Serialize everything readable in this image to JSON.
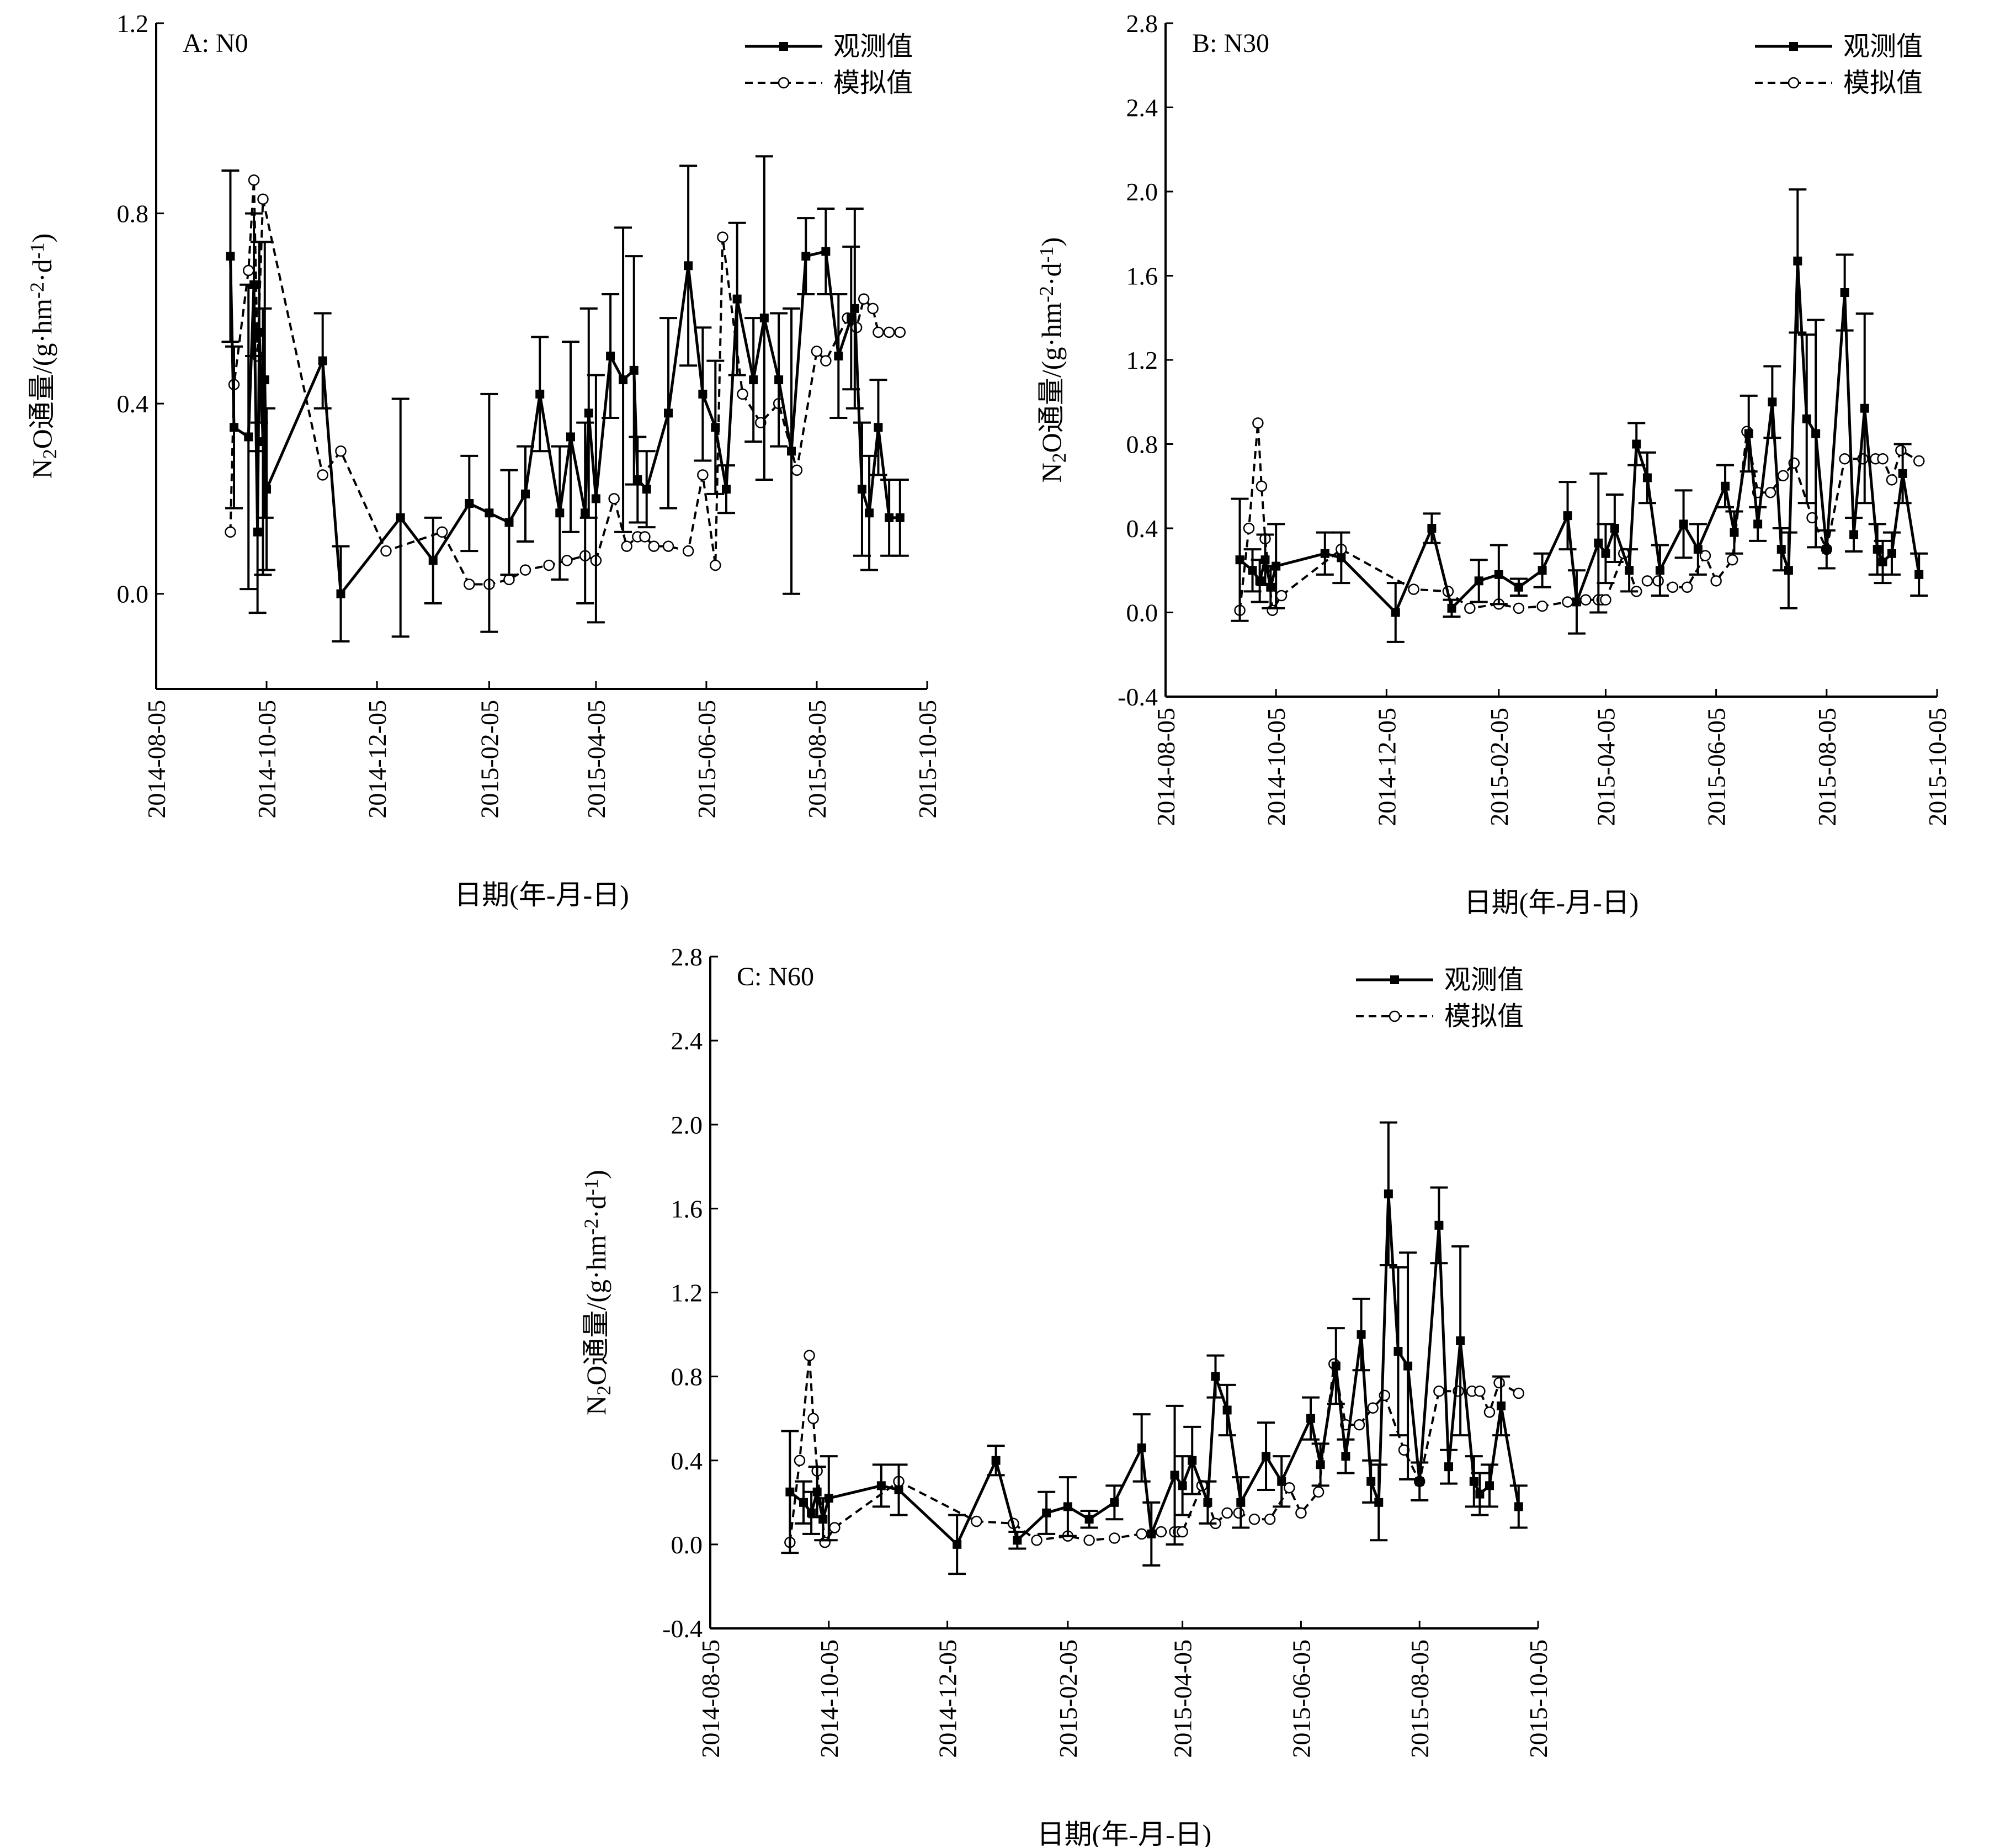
{
  "figure": {
    "y_axis_label": "N2O通量/(g·hm-2·d-1)",
    "x_axis_label": "日期(年-月-日)",
    "legend": {
      "observed": "观测值",
      "simulated": "模拟值"
    },
    "colors": {
      "axis": "#000000",
      "observed": "#000000",
      "simulated": "#000000",
      "marker_fill_simulated": "#ffffff"
    }
  },
  "chart_data": [
    {
      "type": "line",
      "panel_label": "A: N0",
      "xlabel": "日期(年-月-日)",
      "ylabel": "N2O通量/(g·hm-2·d-1)",
      "x_ticks": [
        "2014-08-05",
        "2014-10-05",
        "2014-12-05",
        "2015-02-05",
        "2015-04-05",
        "2015-06-05",
        "2015-08-05",
        "2015-10-05"
      ],
      "ylim": [
        -0.2,
        1.2
      ],
      "y_ticks": [
        0.0,
        0.4,
        0.8,
        1.2
      ],
      "legend_position": "top-right",
      "series": [
        {
          "name": "观测值",
          "style": "solid-square",
          "x": [
            "2014-09-15",
            "2014-09-17",
            "2014-09-25",
            "2014-09-28",
            "2014-09-30",
            "2014-10-01",
            "2014-10-03",
            "2014-10-04",
            "2014-10-05",
            "2014-11-05",
            "2014-11-15",
            "2014-12-18",
            "2015-01-05",
            "2015-01-25",
            "2015-02-05",
            "2015-02-16",
            "2015-02-25",
            "2015-03-05",
            "2015-03-16",
            "2015-03-22",
            "2015-03-30",
            "2015-04-01",
            "2015-04-05",
            "2015-04-13",
            "2015-04-20",
            "2015-04-26",
            "2015-04-28",
            "2015-05-03",
            "2015-05-15",
            "2015-05-26",
            "2015-06-03",
            "2015-06-10",
            "2015-06-16",
            "2015-06-22",
            "2015-07-01",
            "2015-07-07",
            "2015-07-15",
            "2015-07-22",
            "2015-07-30",
            "2015-08-10",
            "2015-08-17",
            "2015-08-24",
            "2015-08-26",
            "2015-08-30",
            "2015-09-03",
            "2015-09-08",
            "2015-09-14",
            "2015-09-20"
          ],
          "y": [
            0.71,
            0.35,
            0.33,
            0.65,
            0.13,
            0.55,
            0.32,
            0.45,
            0.22,
            0.49,
            0.0,
            0.16,
            0.07,
            0.19,
            0.17,
            0.15,
            0.21,
            0.42,
            0.17,
            0.33,
            0.17,
            0.38,
            0.2,
            0.5,
            0.45,
            0.47,
            0.24,
            0.22,
            0.38,
            0.69,
            0.42,
            0.35,
            0.22,
            0.62,
            0.45,
            0.58,
            0.45,
            0.3,
            0.71,
            0.72,
            0.5,
            0.58,
            0.6,
            0.22,
            0.17,
            0.35,
            0.16,
            0.16
          ],
          "err": [
            0.18,
            0.17,
            0.32,
            0.15,
            0.17,
            0.19,
            0.28,
            0.29,
            0.17,
            0.1,
            0.1,
            0.25,
            0.09,
            0.1,
            0.25,
            0.11,
            0.1,
            0.12,
            0.14,
            0.2,
            0.19,
            0.22,
            0.26,
            0.13,
            0.32,
            0.24,
            0.09,
            0.08,
            0.2,
            0.21,
            0.14,
            0.14,
            0.05,
            0.16,
            0.13,
            0.34,
            0.14,
            0.3,
            0.08,
            0.09,
            0.13,
            0.15,
            0.21,
            0.14,
            0.12,
            0.1,
            0.08,
            0.08
          ]
        },
        {
          "name": "模拟值",
          "style": "dashed-circle",
          "x": [
            "2014-09-15",
            "2014-09-17",
            "2014-09-25",
            "2014-09-28",
            "2014-09-30",
            "2014-10-03",
            "2014-11-05",
            "2014-11-15",
            "2014-12-10",
            "2015-01-10",
            "2015-01-25",
            "2015-02-05",
            "2015-02-16",
            "2015-02-25",
            "2015-03-10",
            "2015-03-20",
            "2015-03-30",
            "2015-04-05",
            "2015-04-15",
            "2015-04-22",
            "2015-04-28",
            "2015-05-02",
            "2015-05-07",
            "2015-05-15",
            "2015-05-26",
            "2015-06-03",
            "2015-06-10",
            "2015-06-14",
            "2015-06-25",
            "2015-07-05",
            "2015-07-15",
            "2015-07-25",
            "2015-08-05",
            "2015-08-10",
            "2015-08-22",
            "2015-08-27",
            "2015-08-31",
            "2015-09-05",
            "2015-09-08",
            "2015-09-14",
            "2015-09-20"
          ],
          "y": [
            0.13,
            0.44,
            0.68,
            0.87,
            0.5,
            0.83,
            0.25,
            0.3,
            0.09,
            0.13,
            0.02,
            0.02,
            0.03,
            0.05,
            0.06,
            0.07,
            0.08,
            0.07,
            0.2,
            0.1,
            0.12,
            0.12,
            0.1,
            0.1,
            0.09,
            0.25,
            0.06,
            0.75,
            0.42,
            0.36,
            0.4,
            0.26,
            0.51,
            0.49,
            0.58,
            0.56,
            0.62,
            0.6,
            0.55,
            0.55,
            0.55
          ]
        }
      ]
    },
    {
      "type": "line",
      "panel_label": "B: N30",
      "xlabel": "日期(年-月-日)",
      "ylabel": "N2O通量/(g·hm-2·d-1)",
      "x_ticks": [
        "2014-08-05",
        "2014-10-05",
        "2014-12-05",
        "2015-02-05",
        "2015-04-05",
        "2015-06-05",
        "2015-08-05",
        "2015-10-05"
      ],
      "ylim": [
        -0.4,
        2.8
      ],
      "y_ticks": [
        -0.4,
        0.0,
        0.4,
        0.8,
        1.2,
        1.6,
        2.0,
        2.4,
        2.8
      ],
      "legend_position": "top-right",
      "series": [
        {
          "name": "观测值",
          "style": "solid-square",
          "x": [
            "2014-09-15",
            "2014-09-22",
            "2014-09-26",
            "2014-09-29",
            "2014-10-02",
            "2014-10-05",
            "2014-11-01",
            "2014-11-10",
            "2014-12-10",
            "2014-12-30",
            "2015-01-10",
            "2015-01-25",
            "2015-02-05",
            "2015-02-16",
            "2015-03-01",
            "2015-03-15",
            "2015-03-20",
            "2015-04-01",
            "2015-04-05",
            "2015-04-10",
            "2015-04-18",
            "2015-04-22",
            "2015-04-28",
            "2015-05-05",
            "2015-05-18",
            "2015-05-26",
            "2015-06-10",
            "2015-06-15",
            "2015-06-23",
            "2015-06-28",
            "2015-07-06",
            "2015-07-11",
            "2015-07-15",
            "2015-07-20",
            "2015-07-25",
            "2015-07-30",
            "2015-08-05",
            "2015-08-15",
            "2015-08-20",
            "2015-08-26",
            "2015-09-02",
            "2015-09-05",
            "2015-09-10",
            "2015-09-16",
            "2015-09-25"
          ],
          "y": [
            0.25,
            0.2,
            0.15,
            0.25,
            0.12,
            0.22,
            0.28,
            0.26,
            0.0,
            0.4,
            0.02,
            0.15,
            0.18,
            0.12,
            0.2,
            0.46,
            0.05,
            0.33,
            0.28,
            0.4,
            0.2,
            0.8,
            0.64,
            0.2,
            0.42,
            0.3,
            0.6,
            0.38,
            0.85,
            0.42,
            1.0,
            0.3,
            0.2,
            1.67,
            0.92,
            0.85,
            0.3,
            1.52,
            0.37,
            0.97,
            0.3,
            0.24,
            0.28,
            0.66,
            0.18
          ],
          "err": [
            0.29,
            0.1,
            0.1,
            0.12,
            0.1,
            0.2,
            0.1,
            0.12,
            0.14,
            0.07,
            0.04,
            0.1,
            0.14,
            0.04,
            0.08,
            0.16,
            0.15,
            0.33,
            0.14,
            0.16,
            0.1,
            0.1,
            0.12,
            0.12,
            0.16,
            0.12,
            0.1,
            0.1,
            0.18,
            0.08,
            0.17,
            0.1,
            0.18,
            0.34,
            0.4,
            0.54,
            0.09,
            0.18,
            0.08,
            0.45,
            0.12,
            0.1,
            0.1,
            0.14,
            0.1
          ]
        },
        {
          "name": "模拟值",
          "style": "dashed-circle",
          "x": [
            "2014-09-15",
            "2014-09-20",
            "2014-09-25",
            "2014-09-27",
            "2014-09-29",
            "2014-10-03",
            "2014-10-08",
            "2014-11-10",
            "2014-12-20",
            "2015-01-08",
            "2015-01-20",
            "2015-02-05",
            "2015-02-16",
            "2015-03-01",
            "2015-03-15",
            "2015-03-25",
            "2015-04-01",
            "2015-04-03",
            "2015-04-05",
            "2015-04-15",
            "2015-04-22",
            "2015-04-28",
            "2015-05-04",
            "2015-05-12",
            "2015-05-20",
            "2015-05-30",
            "2015-06-05",
            "2015-06-14",
            "2015-06-22",
            "2015-06-28",
            "2015-07-05",
            "2015-07-12",
            "2015-07-18",
            "2015-07-28",
            "2015-08-05",
            "2015-08-15",
            "2015-08-25",
            "2015-09-01",
            "2015-09-05",
            "2015-09-10",
            "2015-09-15",
            "2015-09-25"
          ],
          "y": [
            0.01,
            0.4,
            0.9,
            0.6,
            0.35,
            0.01,
            0.08,
            0.3,
            0.11,
            0.1,
            0.02,
            0.04,
            0.02,
            0.03,
            0.05,
            0.06,
            0.06,
            0.06,
            0.06,
            0.28,
            0.1,
            0.15,
            0.15,
            0.12,
            0.12,
            0.27,
            0.15,
            0.25,
            0.86,
            0.57,
            0.57,
            0.65,
            0.71,
            0.45,
            0.3,
            0.73,
            0.73,
            0.73,
            0.73,
            0.63,
            0.77,
            0.72
          ]
        }
      ]
    },
    {
      "type": "line",
      "panel_label": "C: N60",
      "xlabel": "日期(年-月-日)",
      "ylabel": "N2O通量/(g·hm-2·d-1)",
      "x_ticks": [
        "2014-08-05",
        "2014-10-05",
        "2014-12-05",
        "2015-02-05",
        "2015-04-05",
        "2015-06-05",
        "2015-08-05",
        "2015-10-05"
      ],
      "ylim": [
        -0.4,
        2.8
      ],
      "y_ticks": [
        -0.4,
        0.0,
        0.4,
        0.8,
        1.2,
        1.6,
        2.0,
        2.4,
        2.8
      ],
      "legend_position": "top-right",
      "series": [
        {
          "name": "观测值",
          "style": "solid-square",
          "x": [
            "2014-09-15",
            "2014-09-22",
            "2014-09-26",
            "2014-09-29",
            "2014-10-02",
            "2014-10-05",
            "2014-11-01",
            "2014-11-10",
            "2014-12-10",
            "2014-12-30",
            "2015-01-10",
            "2015-01-25",
            "2015-02-05",
            "2015-02-16",
            "2015-03-01",
            "2015-03-15",
            "2015-03-20",
            "2015-04-01",
            "2015-04-05",
            "2015-04-10",
            "2015-04-18",
            "2015-04-22",
            "2015-04-28",
            "2015-05-05",
            "2015-05-18",
            "2015-05-26",
            "2015-06-10",
            "2015-06-15",
            "2015-06-23",
            "2015-06-28",
            "2015-07-06",
            "2015-07-11",
            "2015-07-15",
            "2015-07-20",
            "2015-07-25",
            "2015-07-30",
            "2015-08-05",
            "2015-08-15",
            "2015-08-20",
            "2015-08-26",
            "2015-09-02",
            "2015-09-05",
            "2015-09-10",
            "2015-09-16",
            "2015-09-25"
          ],
          "y": [
            0.25,
            0.2,
            0.15,
            0.25,
            0.12,
            0.22,
            0.28,
            0.26,
            0.0,
            0.4,
            0.02,
            0.15,
            0.18,
            0.12,
            0.2,
            0.46,
            0.05,
            0.33,
            0.28,
            0.4,
            0.2,
            0.8,
            0.64,
            0.2,
            0.42,
            0.3,
            0.6,
            0.38,
            0.85,
            0.42,
            1.0,
            0.3,
            0.2,
            1.67,
            0.92,
            0.85,
            0.3,
            1.52,
            0.37,
            0.97,
            0.3,
            0.24,
            0.28,
            0.66,
            0.18
          ],
          "err": [
            0.29,
            0.1,
            0.1,
            0.12,
            0.1,
            0.2,
            0.1,
            0.12,
            0.14,
            0.07,
            0.04,
            0.1,
            0.14,
            0.04,
            0.08,
            0.16,
            0.15,
            0.33,
            0.14,
            0.16,
            0.1,
            0.1,
            0.12,
            0.12,
            0.16,
            0.12,
            0.1,
            0.1,
            0.18,
            0.08,
            0.17,
            0.1,
            0.18,
            0.34,
            0.4,
            0.54,
            0.09,
            0.18,
            0.08,
            0.45,
            0.12,
            0.1,
            0.1,
            0.14,
            0.1
          ]
        },
        {
          "name": "模拟值",
          "style": "dashed-circle",
          "x": [
            "2014-09-15",
            "2014-09-20",
            "2014-09-25",
            "2014-09-27",
            "2014-09-29",
            "2014-10-03",
            "2014-10-08",
            "2014-11-10",
            "2014-12-20",
            "2015-01-08",
            "2015-01-20",
            "2015-02-05",
            "2015-02-16",
            "2015-03-01",
            "2015-03-15",
            "2015-03-25",
            "2015-04-01",
            "2015-04-03",
            "2015-04-05",
            "2015-04-15",
            "2015-04-22",
            "2015-04-28",
            "2015-05-04",
            "2015-05-12",
            "2015-05-20",
            "2015-05-30",
            "2015-06-05",
            "2015-06-14",
            "2015-06-22",
            "2015-06-28",
            "2015-07-05",
            "2015-07-12",
            "2015-07-18",
            "2015-07-28",
            "2015-08-05",
            "2015-08-15",
            "2015-08-25",
            "2015-09-01",
            "2015-09-05",
            "2015-09-10",
            "2015-09-15",
            "2015-09-25"
          ],
          "y": [
            0.01,
            0.4,
            0.9,
            0.6,
            0.35,
            0.01,
            0.08,
            0.3,
            0.11,
            0.1,
            0.02,
            0.04,
            0.02,
            0.03,
            0.05,
            0.06,
            0.06,
            0.06,
            0.06,
            0.28,
            0.1,
            0.15,
            0.15,
            0.12,
            0.12,
            0.27,
            0.15,
            0.25,
            0.86,
            0.57,
            0.57,
            0.65,
            0.71,
            0.45,
            0.3,
            0.73,
            0.73,
            0.73,
            0.73,
            0.63,
            0.77,
            0.72
          ]
        }
      ]
    }
  ]
}
